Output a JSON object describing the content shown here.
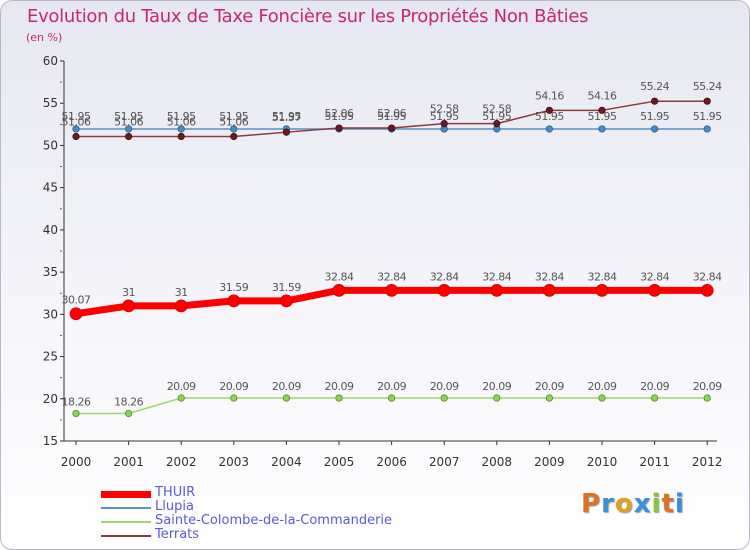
{
  "chart_data": {
    "type": "line",
    "title": "Evolution du Taux de Taxe Foncière sur les Propriétés Non Bâties",
    "ylabel": "(en %)",
    "xlabel": "",
    "ylim": [
      15,
      60
    ],
    "y_ticks": [
      "15",
      "20",
      "25",
      "30",
      "35",
      "40",
      "45",
      "50",
      "55",
      "60"
    ],
    "categories": [
      "2000",
      "2001",
      "2002",
      "2003",
      "2004",
      "2005",
      "2006",
      "2007",
      "2008",
      "2009",
      "2010",
      "2011",
      "2012"
    ],
    "series": [
      {
        "name": "Llupia",
        "color": "#5b8fbf",
        "values": [
          51.95,
          51.95,
          51.95,
          51.95,
          51.95,
          51.95,
          51.95,
          51.95,
          51.95,
          51.95,
          51.95,
          51.95,
          51.95
        ],
        "labels": [
          "51.95",
          "51.95",
          "51.95",
          "51.95",
          "51.95",
          "51.95",
          "51.95",
          "51.95",
          "51.95",
          "51.95",
          "51.95",
          "51.95",
          "51.95"
        ]
      },
      {
        "name": "Terrats",
        "color": "#8b3a3e",
        "values": [
          51.06,
          51.06,
          51.06,
          51.06,
          51.57,
          52.06,
          52.06,
          52.58,
          52.58,
          54.16,
          54.16,
          55.24,
          55.24
        ],
        "labels": [
          "51.06",
          "51.06",
          "51.06",
          "51.06",
          "51.57",
          "52.06",
          "52.06",
          "52.58",
          "52.58",
          "54.16",
          "54.16",
          "55.24",
          "55.24"
        ]
      },
      {
        "name": "Sainte-Colombe-de-la-Commanderie",
        "color": "#9ed86a",
        "values": [
          18.26,
          18.26,
          20.09,
          20.09,
          20.09,
          20.09,
          20.09,
          20.09,
          20.09,
          20.09,
          20.09,
          20.09,
          20.09
        ],
        "labels": [
          "18.26",
          "18.26",
          "20.09",
          "20.09",
          "20.09",
          "20.09",
          "20.09",
          "20.09",
          "20.09",
          "20.09",
          "20.09",
          "20.09",
          "20.09"
        ]
      },
      {
        "name": "THUIR",
        "color": "#ff0000",
        "values": [
          30.07,
          31,
          31,
          31.59,
          31.59,
          32.84,
          32.84,
          32.84,
          32.84,
          32.84,
          32.84,
          32.84,
          32.84
        ],
        "labels": [
          "30.07",
          "31",
          "31",
          "31.59",
          "31.59",
          "32.84",
          "32.84",
          "32.84",
          "32.84",
          "32.84",
          "32.84",
          "32.84",
          "32.84"
        ]
      }
    ],
    "legend": [
      "THUIR",
      "Llupia",
      "Sainte-Colombe-de-la-Commanderie",
      "Terrats"
    ],
    "grid": false,
    "legend_position": "bottom-left"
  },
  "branding": {
    "logo_letters": [
      "P",
      "r",
      "o",
      "x",
      "i",
      "t",
      "i"
    ],
    "logo_colors": [
      "#e07020",
      "#3a8fd8",
      "#e0a020",
      "#3a8fd8",
      "#8cc43c",
      "#e07020",
      "#3a8fd8"
    ]
  }
}
